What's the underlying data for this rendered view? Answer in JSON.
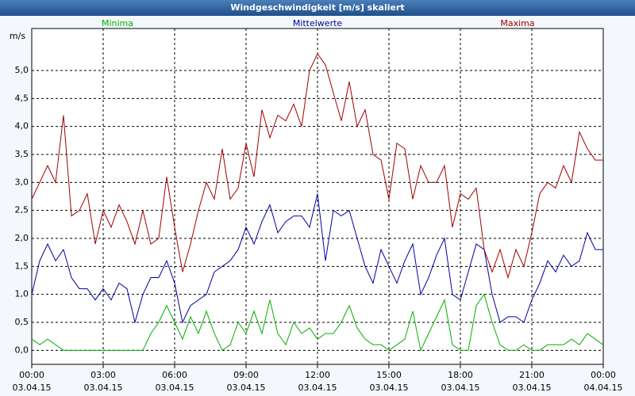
{
  "chart_data": {
    "type": "line",
    "title": "Windgeschwindigkeit [m/s] skaliert",
    "y_label": "m/s",
    "x": [
      0,
      20,
      40,
      60,
      80,
      100,
      120,
      140,
      160,
      180,
      200,
      220,
      240,
      260,
      280,
      300,
      320,
      340,
      360,
      380,
      400,
      420,
      440,
      460,
      480,
      500,
      520,
      540,
      560,
      580,
      600,
      620,
      640,
      660,
      680,
      700,
      720,
      740,
      760,
      780,
      800,
      820,
      840,
      860,
      880,
      900,
      920,
      940,
      960,
      980,
      1000,
      1020,
      1040,
      1060,
      1080,
      1100,
      1120,
      1140,
      1160,
      1180,
      1200,
      1220,
      1240,
      1260,
      1280,
      1300,
      1320,
      1340,
      1360,
      1380,
      1400,
      1420,
      1440
    ],
    "series": [
      {
        "name": "Minima",
        "color": "#00b000",
        "values": [
          0.2,
          0.1,
          0.2,
          0.1,
          0.0,
          0.0,
          0.0,
          0.0,
          0.0,
          0.0,
          0.0,
          0.0,
          0.0,
          0.0,
          0.0,
          0.3,
          0.5,
          0.8,
          0.5,
          0.2,
          0.6,
          0.3,
          0.7,
          0.3,
          0.0,
          0.1,
          0.5,
          0.3,
          0.7,
          0.3,
          0.9,
          0.3,
          0.1,
          0.5,
          0.3,
          0.4,
          0.2,
          0.3,
          0.3,
          0.5,
          0.8,
          0.4,
          0.2,
          0.1,
          0.1,
          0.0,
          0.1,
          0.2,
          0.7,
          0.0,
          0.3,
          0.6,
          0.9,
          0.1,
          0.0,
          0.0,
          0.8,
          1.0,
          0.5,
          0.1,
          0.0,
          0.0,
          0.1,
          0.0,
          0.0,
          0.1,
          0.1,
          0.1,
          0.2,
          0.1,
          0.3,
          0.2,
          0.1
        ]
      },
      {
        "name": "Mittelwerte",
        "color": "#0000a0",
        "values": [
          1.0,
          1.6,
          1.9,
          1.6,
          1.8,
          1.3,
          1.1,
          1.1,
          0.9,
          1.1,
          0.9,
          1.2,
          1.1,
          0.5,
          1.0,
          1.3,
          1.3,
          1.6,
          1.2,
          0.5,
          0.8,
          0.9,
          1.0,
          1.4,
          1.5,
          1.6,
          1.8,
          2.2,
          1.9,
          2.3,
          2.6,
          2.1,
          2.3,
          2.4,
          2.4,
          2.2,
          2.8,
          1.6,
          2.5,
          2.4,
          2.5,
          2.0,
          1.5,
          1.2,
          1.8,
          1.5,
          1.2,
          1.6,
          1.9,
          1.0,
          1.3,
          1.7,
          2.0,
          1.0,
          0.9,
          1.4,
          1.9,
          1.8,
          1.0,
          0.5,
          0.6,
          0.6,
          0.5,
          0.9,
          1.2,
          1.6,
          1.4,
          1.7,
          1.5,
          1.6,
          2.1,
          1.8,
          1.8
        ]
      },
      {
        "name": "Maxima",
        "color": "#a00000",
        "values": [
          2.7,
          3.0,
          3.3,
          3.0,
          4.2,
          2.4,
          2.5,
          2.8,
          1.9,
          2.5,
          2.2,
          2.6,
          2.3,
          1.9,
          2.5,
          1.9,
          2.0,
          3.1,
          2.2,
          1.4,
          1.9,
          2.5,
          3.0,
          2.7,
          3.6,
          2.7,
          2.9,
          3.7,
          3.1,
          4.3,
          3.8,
          4.2,
          4.1,
          4.4,
          4.0,
          5.0,
          5.3,
          5.1,
          4.6,
          4.1,
          4.8,
          4.0,
          4.3,
          3.5,
          3.4,
          2.7,
          3.7,
          3.6,
          2.7,
          3.3,
          3.0,
          3.0,
          3.3,
          2.2,
          2.8,
          2.7,
          2.9,
          1.8,
          1.4,
          1.8,
          1.3,
          1.8,
          1.5,
          2.1,
          2.8,
          3.0,
          2.9,
          3.3,
          3.0,
          3.9,
          3.6,
          3.4,
          3.4
        ]
      }
    ],
    "xlim": [
      0,
      1440
    ],
    "xticks": [
      {
        "value": 0,
        "label": "00:00",
        "date": "03.04.15"
      },
      {
        "value": 180,
        "label": "03:00",
        "date": "03.04.15"
      },
      {
        "value": 360,
        "label": "06:00",
        "date": "03.04.15"
      },
      {
        "value": 540,
        "label": "09:00",
        "date": "03.04.15"
      },
      {
        "value": 720,
        "label": "12:00",
        "date": "03.04.15"
      },
      {
        "value": 900,
        "label": "15:00",
        "date": "03.04.15"
      },
      {
        "value": 1080,
        "label": "18:00",
        "date": "03.04.15"
      },
      {
        "value": 1260,
        "label": "21:00",
        "date": "03.04.15"
      },
      {
        "value": 1440,
        "label": "00:00",
        "date": "04.04.15"
      }
    ],
    "ylim": [
      -0.25,
      5.75
    ],
    "yticks": [
      {
        "value": 0,
        "label": "0,0"
      },
      {
        "value": 0.5,
        "label": "0,5"
      },
      {
        "value": 1,
        "label": "1,0"
      },
      {
        "value": 1.5,
        "label": "1,5"
      },
      {
        "value": 2,
        "label": "2,0"
      },
      {
        "value": 2.5,
        "label": "2,5"
      },
      {
        "value": 3,
        "label": "3,0"
      },
      {
        "value": 3.5,
        "label": "3,5"
      },
      {
        "value": 4,
        "label": "4,0"
      },
      {
        "value": 4.5,
        "label": "4,5"
      },
      {
        "value": 5,
        "label": "5,0"
      }
    ],
    "grid": true
  }
}
